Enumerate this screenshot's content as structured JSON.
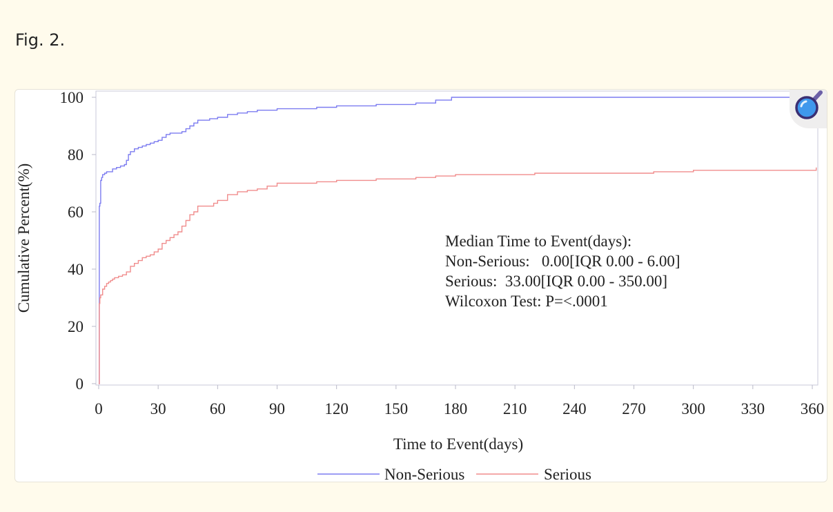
{
  "figure": {
    "label": "Fig. 2."
  },
  "icons": {
    "zoom": "magnifier-icon"
  },
  "colors": {
    "page_background": "#fffbec",
    "non_serious": "#7b7bf0",
    "serious": "#f08c8c"
  },
  "chart_data": {
    "type": "line",
    "xlabel": "Time to Event(days)",
    "ylabel": "Cumulative Percent(%)",
    "xlim": [
      0,
      360
    ],
    "ylim": [
      0,
      100
    ],
    "x_ticks": [
      0,
      30,
      60,
      90,
      120,
      150,
      180,
      210,
      240,
      270,
      300,
      330,
      360
    ],
    "y_ticks": [
      0,
      20,
      40,
      60,
      80,
      100
    ],
    "grid": false,
    "step": true,
    "legend_position": "bottom",
    "annotation": [
      "Median Time to Event(days):",
      "Non-Serious:   0.00[IQR 0.00 - 6.00]",
      "Serious:  33.00[IQR 0.00 - 350.00]",
      "Wilcoxon Test: P=<.0001"
    ],
    "series": [
      {
        "name": "Non-Serious",
        "color": "#7b7bf0",
        "x": [
          0,
          0.3,
          0.6,
          1,
          1.5,
          2,
          3,
          4,
          5,
          7,
          9,
          11,
          13,
          14,
          15,
          16,
          18,
          20,
          22,
          24,
          26,
          28,
          30,
          32,
          34,
          36,
          38,
          40,
          42,
          44,
          46,
          48,
          50,
          53,
          56,
          60,
          65,
          70,
          75,
          80,
          90,
          100,
          110,
          120,
          130,
          140,
          150,
          160,
          170,
          178,
          200,
          250,
          300,
          362
        ],
        "y": [
          0,
          62,
          63,
          71,
          72,
          73,
          73.5,
          74,
          74,
          75,
          75.5,
          76,
          76.5,
          78,
          80,
          81,
          82,
          82.5,
          83,
          83.5,
          84,
          84.5,
          85,
          86,
          87,
          87.5,
          87.5,
          87.5,
          88,
          89,
          90,
          91,
          92,
          92,
          92.5,
          93,
          94,
          94.5,
          95,
          95.5,
          96,
          96,
          96.5,
          97,
          97,
          97.5,
          97.5,
          98,
          99,
          100,
          100,
          100,
          100,
          100
        ]
      },
      {
        "name": "Serious",
        "color": "#f08c8c",
        "x": [
          0,
          0.3,
          0.6,
          1,
          2,
          3,
          4,
          5,
          6,
          7,
          8,
          10,
          12,
          14,
          16,
          18,
          20,
          22,
          24,
          26,
          28,
          30,
          32,
          34,
          36,
          38,
          40,
          42,
          44,
          46,
          48,
          50,
          55,
          58,
          60,
          65,
          70,
          75,
          80,
          85,
          90,
          100,
          110,
          120,
          130,
          140,
          150,
          160,
          170,
          180,
          200,
          220,
          250,
          280,
          300,
          350,
          362
        ],
        "y": [
          0,
          28,
          30,
          31,
          33,
          34,
          35,
          35.5,
          36,
          36.5,
          37,
          37.5,
          38,
          39,
          41,
          42,
          43,
          44,
          44.5,
          45,
          46,
          47,
          49,
          50,
          51,
          52,
          53,
          55,
          57,
          59,
          60,
          62,
          62,
          63,
          64,
          66,
          67,
          67.5,
          68,
          69,
          70,
          70,
          70.5,
          71,
          71,
          71.5,
          71.5,
          72,
          72.5,
          73,
          73,
          73.5,
          73.5,
          74,
          74.5,
          74.5,
          75.5
        ]
      }
    ]
  }
}
